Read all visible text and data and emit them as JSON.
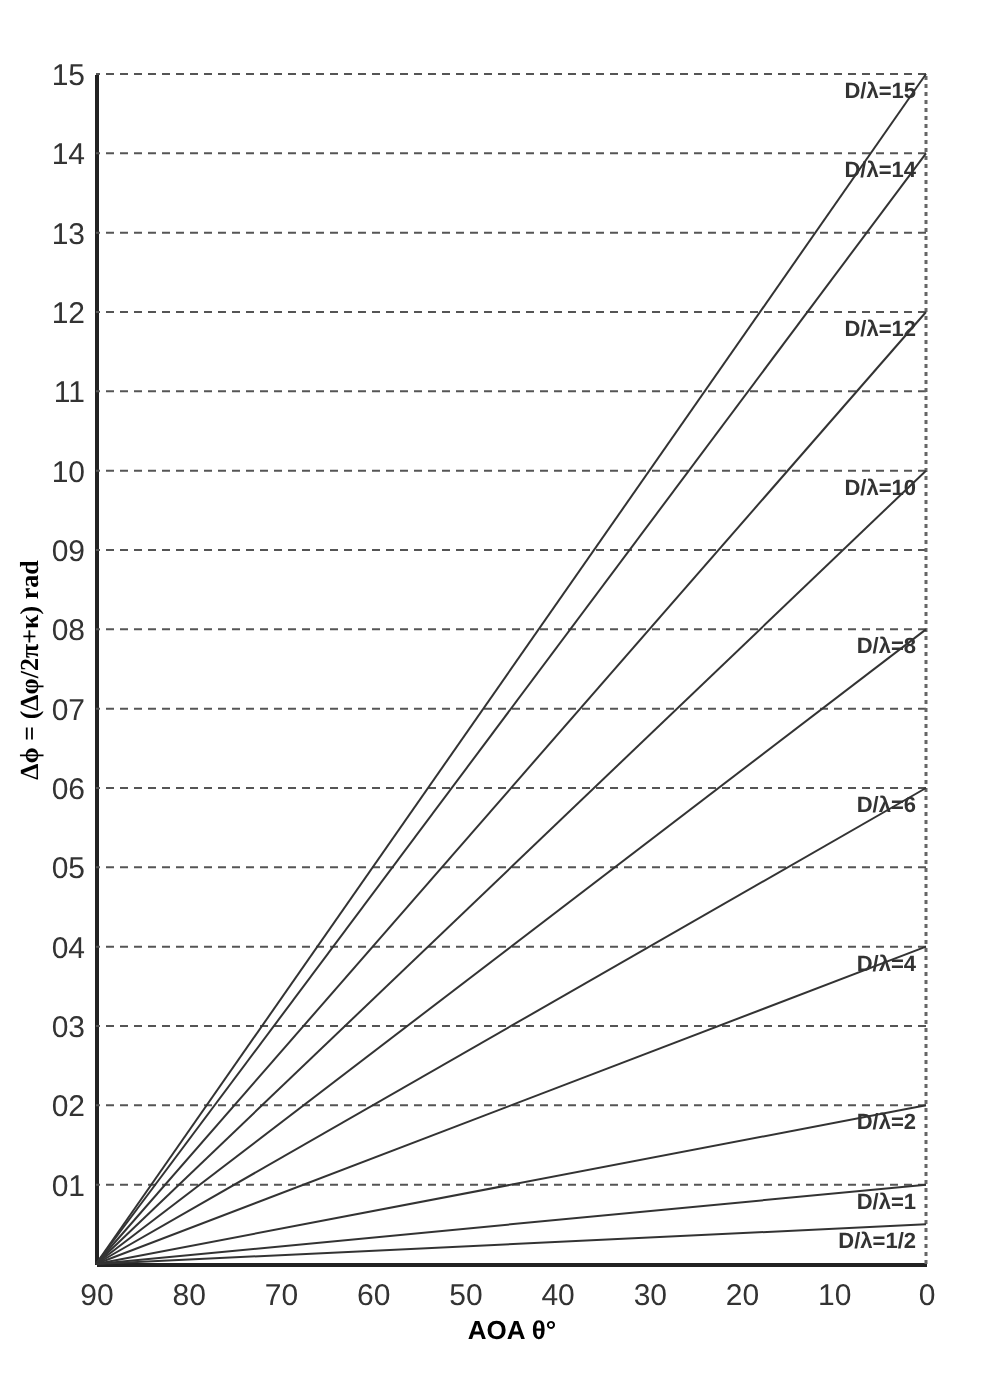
{
  "chart_data": {
    "type": "line",
    "xlabel": "AOA     θ°",
    "ylabel": "Δϕ = (Δφ/2π+κ) rad",
    "xlim": [
      90,
      0
    ],
    "xticks": [
      90,
      80,
      70,
      60,
      50,
      40,
      30,
      20,
      10,
      0
    ],
    "ylim": [
      0,
      15
    ],
    "yticks": [
      {
        "value": 1,
        "label": "01"
      },
      {
        "value": 2,
        "label": "02"
      },
      {
        "value": 3,
        "label": "03"
      },
      {
        "value": 4,
        "label": "04"
      },
      {
        "value": 5,
        "label": "05"
      },
      {
        "value": 6,
        "label": "06"
      },
      {
        "value": 7,
        "label": "07"
      },
      {
        "value": 8,
        "label": "08"
      },
      {
        "value": 9,
        "label": "09"
      },
      {
        "value": 10,
        "label": "10"
      },
      {
        "value": 11,
        "label": "11"
      },
      {
        "value": 12,
        "label": "12"
      },
      {
        "value": 13,
        "label": "13"
      },
      {
        "value": 14,
        "label": "14"
      },
      {
        "value": 15,
        "label": "15"
      }
    ],
    "x": [
      90,
      0
    ],
    "grid": "y",
    "legend": false,
    "marker": "none",
    "line_style": "solid",
    "series": [
      {
        "name": "D/λ=15",
        "color": "#333333",
        "values": [
          0,
          15
        ]
      },
      {
        "name": "D/λ=14",
        "color": "#333333",
        "values": [
          0,
          14
        ]
      },
      {
        "name": "D/λ=12",
        "color": "#333333",
        "values": [
          0,
          12
        ]
      },
      {
        "name": "D/λ=10",
        "color": "#333333",
        "values": [
          0,
          10
        ]
      },
      {
        "name": "D/λ=8",
        "color": "#333333",
        "values": [
          0,
          8
        ]
      },
      {
        "name": "D/λ=6",
        "color": "#333333",
        "values": [
          0,
          6
        ]
      },
      {
        "name": "D/λ=4",
        "color": "#333333",
        "values": [
          0,
          4
        ]
      },
      {
        "name": "D/λ=2",
        "color": "#333333",
        "values": [
          0,
          2
        ]
      },
      {
        "name": "D/λ=1",
        "color": "#333333",
        "values": [
          0,
          1
        ]
      },
      {
        "name": "D/λ=1/2",
        "color": "#333333",
        "values": [
          0,
          0.5
        ]
      }
    ],
    "ref_lines": [
      {
        "axis": "x",
        "value": 0,
        "color": "#666666",
        "line_style": "dotted"
      }
    ]
  }
}
